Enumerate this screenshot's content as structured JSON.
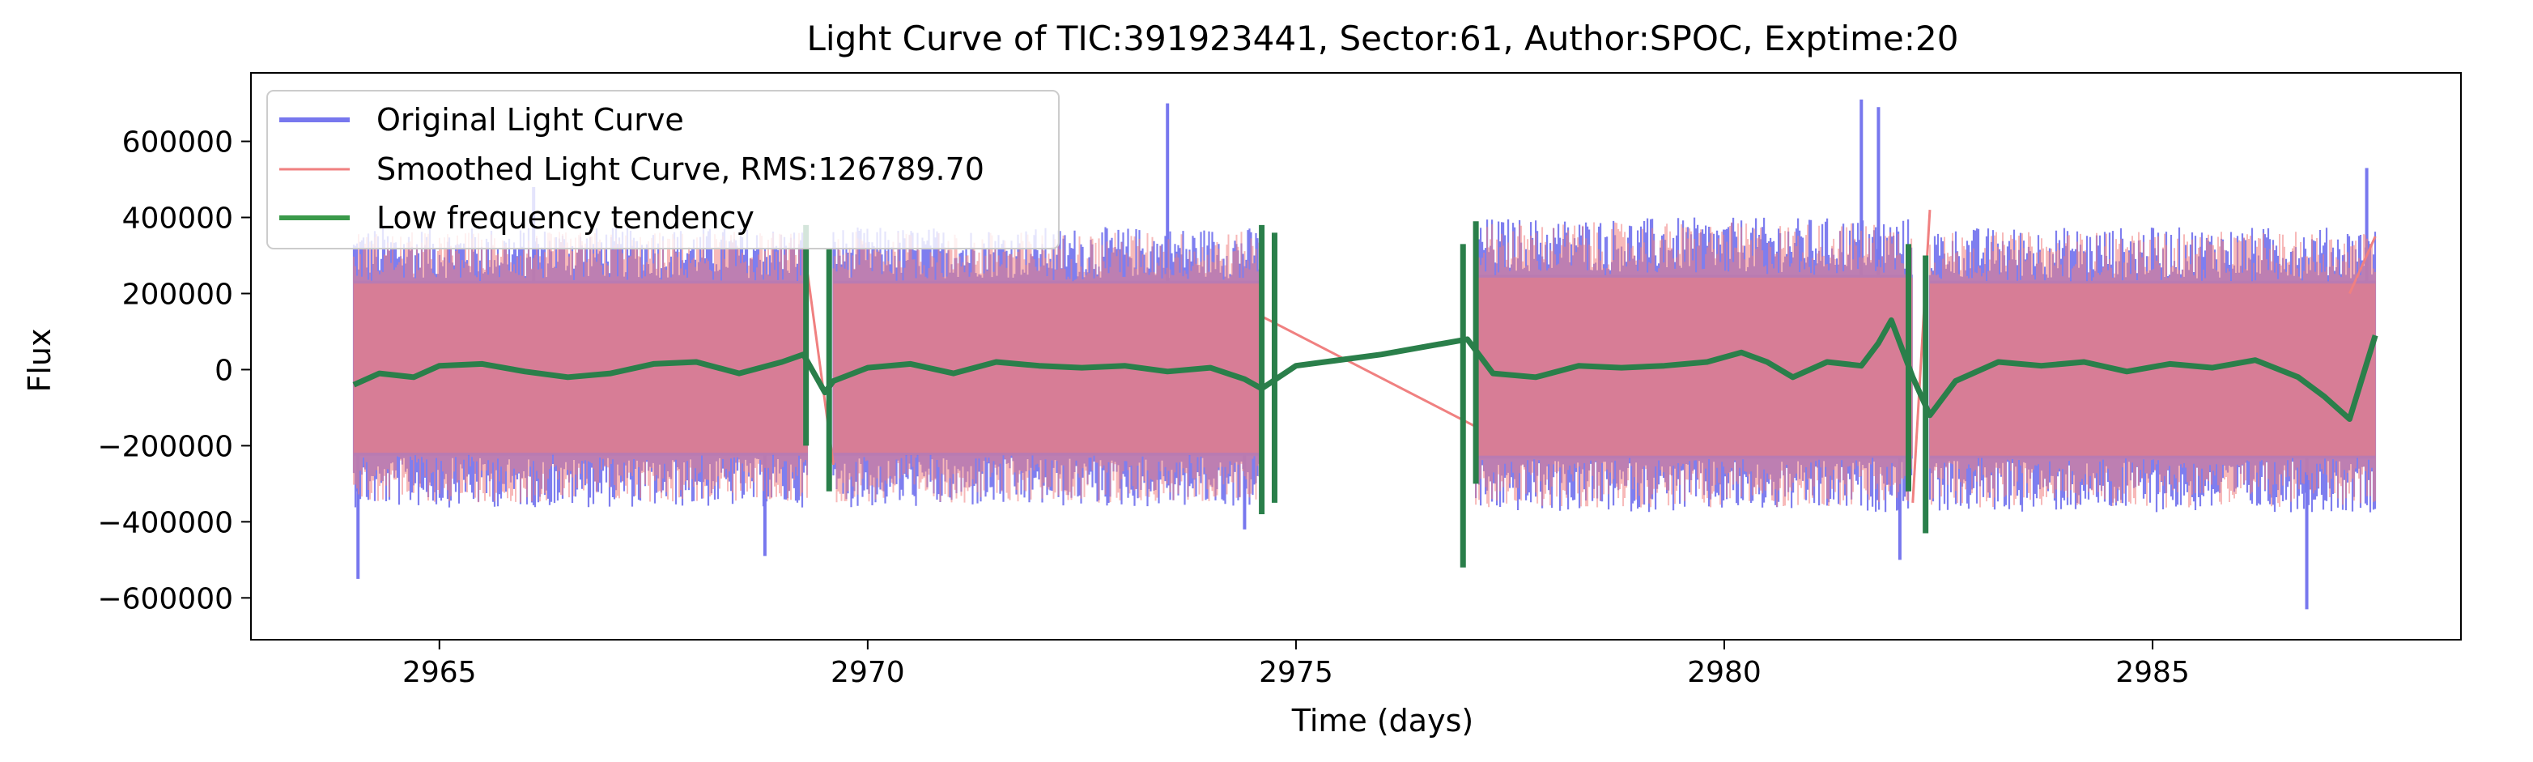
{
  "chart_data": {
    "type": "line",
    "title": "Light Curve of TIC:391923441, Sector:61, Author:SPOC, Exptime:20",
    "xlabel": "Time (days)",
    "ylabel": "Flux",
    "xlim": [
      2962.8,
      2988.6
    ],
    "ylim": [
      -710000,
      780000
    ],
    "xticks": [
      2965,
      2970,
      2975,
      2980,
      2985
    ],
    "xtick_labels": [
      "2965",
      "2970",
      "2975",
      "2980",
      "2985"
    ],
    "yticks": [
      -600000,
      -400000,
      -200000,
      0,
      200000,
      400000,
      600000
    ],
    "ytick_labels": [
      "−600000",
      "−400000",
      "−200000",
      "0",
      "200000",
      "400000",
      "600000"
    ],
    "legend_position": "top-left",
    "grid": false,
    "series": [
      {
        "name": "Original Light Curve",
        "color": "#7777ee",
        "style": "dense-band",
        "segments": [
          {
            "x": [
              2964.0,
              2969.3
            ],
            "core": [
              -290000,
              300000
            ],
            "peaks": [
              [
                2964.05,
                -550000
              ],
              [
                2966.1,
                480000
              ],
              [
                2968.8,
                -490000
              ]
            ]
          },
          {
            "x": [
              2969.6,
              2974.6
            ],
            "core": [
              -290000,
              300000
            ],
            "peaks": [
              [
                2973.5,
                700000
              ],
              [
                2974.4,
                -420000
              ]
            ]
          },
          {
            "x": [
              2977.1,
              2982.2
            ],
            "core": [
              -300000,
              320000
            ],
            "peaks": [
              [
                2981.6,
                710000
              ],
              [
                2981.8,
                690000
              ],
              [
                2982.05,
                -500000
              ]
            ]
          },
          {
            "x": [
              2982.4,
              2987.6
            ],
            "core": [
              -300000,
              300000
            ],
            "peaks": [
              [
                2986.8,
                -630000
              ],
              [
                2987.5,
                530000
              ]
            ]
          }
        ]
      },
      {
        "name": "Smoothed Light Curve, RMS:126789.70",
        "color": "#f08080",
        "style": "dense-band",
        "segments": [
          {
            "x": [
              2964.0,
              2969.3
            ],
            "core": [
              -280000,
              290000
            ]
          },
          {
            "x": [
              2969.6,
              2974.6
            ],
            "core": [
              -280000,
              290000
            ]
          },
          {
            "x": [
              2977.1,
              2982.2
            ],
            "core": [
              -290000,
              310000
            ]
          },
          {
            "x": [
              2982.4,
              2987.6
            ],
            "core": [
              -290000,
              290000
            ]
          }
        ],
        "bridges": [
          {
            "x": [
              2969.3,
              2969.6
            ],
            "y": [
              250000,
              -250000
            ]
          },
          {
            "x": [
              2974.6,
              2977.1
            ],
            "y": [
              140000,
              -150000
            ]
          },
          {
            "x": [
              2982.2,
              2982.4
            ],
            "y": [
              -350000,
              420000
            ]
          },
          {
            "x": [
              2987.3,
              2987.6
            ],
            "y": [
              200000,
              350000
            ]
          }
        ]
      },
      {
        "name": "Low frequency tendency",
        "color": "#2a7f4a",
        "style": "line",
        "x": [
          2964.0,
          2964.3,
          2964.7,
          2965.0,
          2965.5,
          2966.0,
          2966.5,
          2967.0,
          2967.5,
          2968.0,
          2968.5,
          2969.0,
          2969.25,
          2969.5,
          2969.6,
          2970.0,
          2970.5,
          2971.0,
          2971.5,
          2972.0,
          2972.5,
          2973.0,
          2973.5,
          2974.0,
          2974.4,
          2974.6,
          2975.0,
          2976.0,
          2977.0,
          2977.3,
          2977.8,
          2978.3,
          2978.8,
          2979.3,
          2979.8,
          2980.2,
          2980.5,
          2980.8,
          2981.2,
          2981.6,
          2981.8,
          2981.95,
          2982.1,
          2982.2,
          2982.4,
          2982.7,
          2983.2,
          2983.7,
          2984.2,
          2984.7,
          2985.2,
          2985.7,
          2986.2,
          2986.7,
          2987.0,
          2987.3,
          2987.6
        ],
        "y": [
          -40000,
          -10000,
          -20000,
          10000,
          15000,
          -5000,
          -20000,
          -10000,
          15000,
          20000,
          -10000,
          20000,
          40000,
          -60000,
          -30000,
          5000,
          15000,
          -10000,
          20000,
          10000,
          5000,
          10000,
          -5000,
          5000,
          -25000,
          -50000,
          10000,
          40000,
          80000,
          -10000,
          -20000,
          10000,
          5000,
          10000,
          20000,
          45000,
          20000,
          -20000,
          20000,
          10000,
          70000,
          130000,
          40000,
          -20000,
          -120000,
          -30000,
          20000,
          10000,
          20000,
          -5000,
          15000,
          5000,
          25000,
          -20000,
          -70000,
          -130000,
          90000
        ],
        "spikes": [
          {
            "x": 2969.28,
            "y": [
              -200000,
              380000
            ]
          },
          {
            "x": 2969.55,
            "y": [
              -320000,
              320000
            ]
          },
          {
            "x": 2974.6,
            "y": [
              -380000,
              380000
            ]
          },
          {
            "x": 2974.75,
            "y": [
              -350000,
              360000
            ]
          },
          {
            "x": 2976.95,
            "y": [
              -520000,
              330000
            ]
          },
          {
            "x": 2977.1,
            "y": [
              -300000,
              390000
            ]
          },
          {
            "x": 2982.15,
            "y": [
              -320000,
              330000
            ]
          },
          {
            "x": 2982.35,
            "y": [
              -430000,
              300000
            ]
          }
        ]
      }
    ]
  }
}
